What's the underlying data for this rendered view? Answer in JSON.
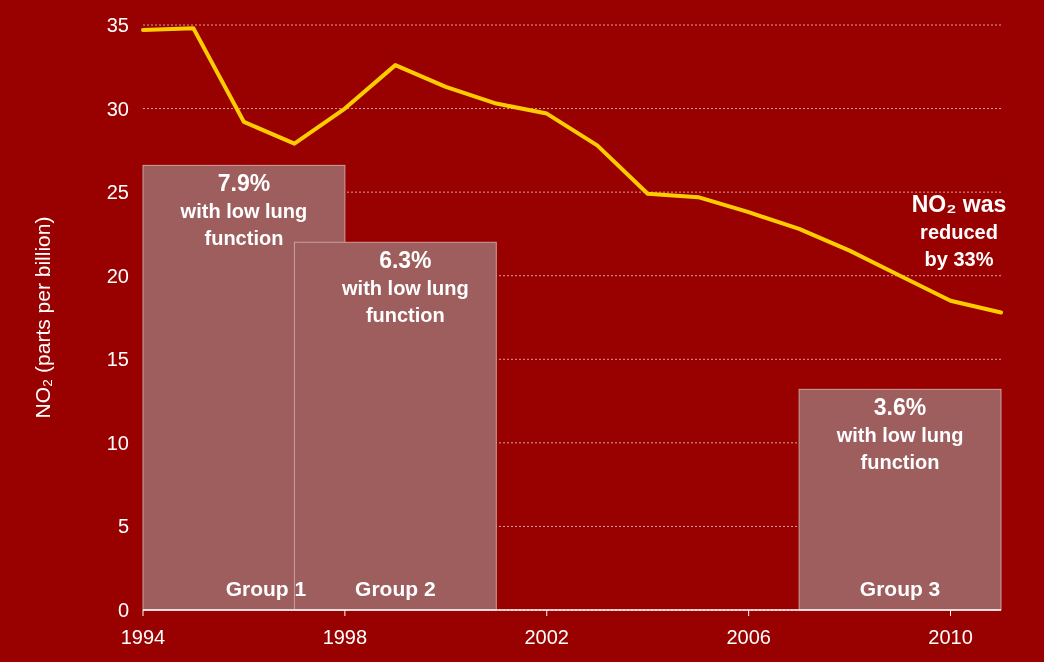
{
  "chart_data": {
    "type": "line",
    "ylabel": "NO₂ (parts per billion)",
    "xlim": [
      1994,
      2011
    ],
    "xticks": [
      1994,
      1998,
      2002,
      2006,
      2010
    ],
    "ylim": [
      0,
      35
    ],
    "yticks": [
      0,
      5,
      10,
      15,
      20,
      25,
      30,
      35
    ],
    "grid": "y",
    "series": [
      {
        "type": "bar",
        "color": "#9e5e5e",
        "x": [
          1996,
          1999,
          2009
        ],
        "values": [
          26.6,
          22.0,
          13.2
        ]
      },
      {
        "color": "#ffcc00",
        "x": [
          1994,
          1995,
          1996,
          1997,
          1998,
          1999,
          2000,
          2001,
          2002,
          2003,
          2004,
          2005,
          2006,
          2007,
          2008,
          2009,
          2010,
          2011
        ],
        "values": [
          34.7,
          34.8,
          29.2,
          27.9,
          30.0,
          32.6,
          31.3,
          30.3,
          29.7,
          27.8,
          24.9,
          24.7,
          23.8,
          22.8,
          21.5,
          20.0,
          18.5,
          17.8
        ]
      }
    ],
    "annotations": [
      "7.9%\nwith low lung\nfunction",
      "6.3%\nwith low lung\nfunction",
      "3.6%\nwith low lung\nfunction",
      "NO₂ was\nreduced\nby 33%",
      "Group 1",
      "Group 2",
      "Group 3"
    ]
  }
}
